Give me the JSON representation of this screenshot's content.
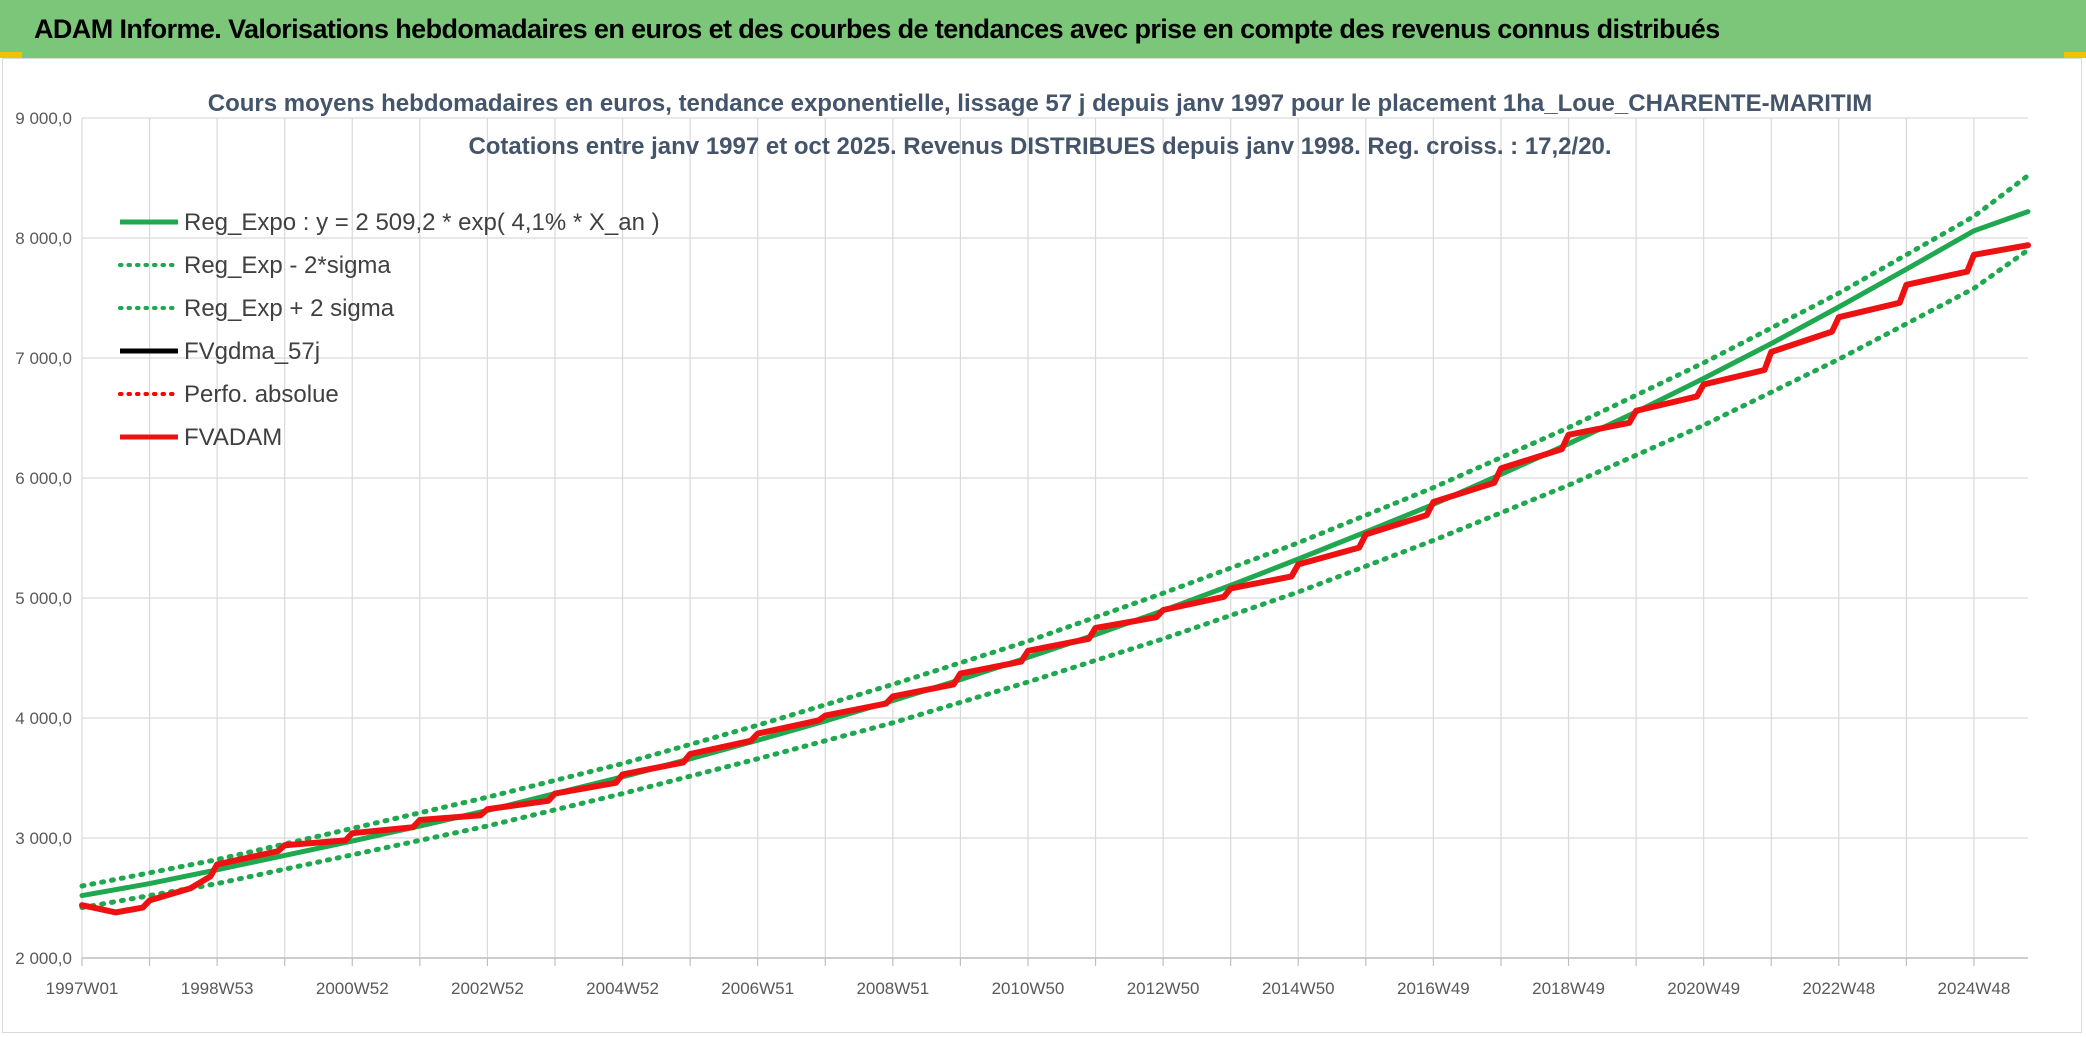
{
  "header": {
    "title": "ADAM Informe. Valorisations hebdomadaires en euros et des courbes de tendances avec prise en compte des revenus connus distribués",
    "background": "#7cc67a"
  },
  "chart_data": {
    "type": "line",
    "title_line1": "Cours moyens hebdomadaires en euros, tendance exponentielle, lissage 57 j depuis janv 1997 pour le placement 1ha_Loue_CHARENTE-MARITIM",
    "title_line2": "Cotations entre janv 1997 et oct 2025. Revenus DISTRIBUES depuis janv 1998. Reg. croiss. : 17,2/20.",
    "xlabel": "",
    "ylabel": "",
    "ylim": [
      2000,
      9000
    ],
    "y_ticks": [
      "2 000,0",
      "3 000,0",
      "4 000,0",
      "5 000,0",
      "6 000,0",
      "7 000,0",
      "8 000,0",
      "9 000,0"
    ],
    "y_tick_values": [
      2000,
      3000,
      4000,
      5000,
      6000,
      7000,
      8000,
      9000
    ],
    "xlim": [
      1997.0,
      2025.8
    ],
    "x_ticks": [
      "1997W01",
      "1998W53",
      "2000W52",
      "2002W52",
      "2004W52",
      "2006W51",
      "2008W51",
      "2010W50",
      "2012W50",
      "2014W50",
      "2016W49",
      "2018W49",
      "2020W49",
      "2022W48",
      "2024W48"
    ],
    "x_tick_values": [
      1997,
      1999,
      2001,
      2003,
      2005,
      2007,
      2009,
      2011,
      2013,
      2015,
      2017,
      2019,
      2021,
      2023,
      2025
    ],
    "grid": true,
    "legend_position": "top-left",
    "series": [
      {
        "name": "Reg_Expo : y = 2 509,2 * exp( 4,1% *  X_an )",
        "color": "#1fa84f",
        "style": "solid",
        "x": [
          1997,
          1998,
          1999,
          2000,
          2001,
          2002,
          2003,
          2004,
          2005,
          2006,
          2007,
          2008,
          2009,
          2010,
          2011,
          2012,
          2013,
          2014,
          2015,
          2016,
          2017,
          2018,
          2019,
          2020,
          2021,
          2022,
          2023,
          2024,
          2025,
          2025.8
        ],
        "values": [
          2520,
          2620,
          2735,
          2855,
          2975,
          3100,
          3230,
          3370,
          3510,
          3660,
          3815,
          3975,
          4145,
          4320,
          4505,
          4695,
          4895,
          5105,
          5325,
          5550,
          5780,
          6030,
          6285,
          6550,
          6830,
          7120,
          7425,
          7740,
          8060,
          8220
        ]
      },
      {
        "name": "Reg_Exp - 2*sigma",
        "color": "#1fa84f",
        "style": "dotted",
        "x": [
          1997,
          1999,
          2001,
          2003,
          2005,
          2007,
          2009,
          2011,
          2013,
          2015,
          2017,
          2019,
          2021,
          2023,
          2025,
          2025.8
        ],
        "values": [
          2420,
          2620,
          2860,
          3100,
          3370,
          3660,
          3960,
          4300,
          4660,
          5050,
          5480,
          5940,
          6440,
          6990,
          7580,
          7900
        ]
      },
      {
        "name": "Reg_Exp + 2 sigma",
        "color": "#1fa84f",
        "style": "dotted",
        "x": [
          1997,
          1999,
          2001,
          2003,
          2005,
          2007,
          2009,
          2011,
          2013,
          2015,
          2017,
          2019,
          2021,
          2023,
          2025,
          2025.8
        ],
        "values": [
          2600,
          2820,
          3080,
          3340,
          3620,
          3940,
          4280,
          4640,
          5040,
          5460,
          5920,
          6420,
          6960,
          7540,
          8180,
          8520
        ]
      },
      {
        "name": "FVgdma_57j",
        "color": "#000000",
        "style": "solid",
        "x": [
          1997.0,
          1997.5,
          1997.9,
          1998.0,
          1998.6,
          1998.9,
          1999.0,
          1999.9,
          2000.0,
          2000.9,
          2001.0,
          2001.9,
          2002.0,
          2002.9,
          2003.0,
          2003.9,
          2004.0,
          2004.9,
          2005.0,
          2005.9,
          2006.0,
          2006.9,
          2007.0,
          2007.9,
          2008.0,
          2008.9,
          2009.0,
          2009.9,
          2010.0,
          2010.9,
          2011.0,
          2011.9,
          2012.0,
          2012.9,
          2013.0,
          2013.9,
          2014.0,
          2014.9,
          2015.0,
          2015.9,
          2016.0,
          2016.9,
          2017.0,
          2017.9,
          2018.0,
          2018.9,
          2019.0,
          2019.9,
          2020.0,
          2020.9,
          2021.0,
          2021.9,
          2022.0,
          2022.9,
          2023.0,
          2023.9,
          2024.0,
          2024.9,
          2025.0,
          2025.8
        ],
        "values": [
          2440,
          2380,
          2420,
          2480,
          2580,
          2680,
          2780,
          2890,
          2940,
          2980,
          3040,
          3090,
          3150,
          3190,
          3240,
          3310,
          3370,
          3460,
          3530,
          3630,
          3700,
          3810,
          3870,
          3980,
          4020,
          4120,
          4180,
          4280,
          4370,
          4470,
          4560,
          4660,
          4750,
          4840,
          4900,
          5010,
          5080,
          5180,
          5280,
          5420,
          5530,
          5690,
          5800,
          5960,
          6080,
          6240,
          6360,
          6460,
          6560,
          6680,
          6780,
          6900,
          7050,
          7220,
          7340,
          7460,
          7610,
          7720,
          7860,
          7940
        ]
      },
      {
        "name": "Perfo. absolue",
        "color": "#ff0000",
        "style": "dotted",
        "x": [],
        "values": []
      },
      {
        "name": "FVADAM",
        "color": "#ee1111",
        "style": "solid",
        "x": [
          1997.0,
          1997.5,
          1997.9,
          1998.0,
          1998.6,
          1998.9,
          1999.0,
          1999.9,
          2000.0,
          2000.9,
          2001.0,
          2001.9,
          2002.0,
          2002.9,
          2003.0,
          2003.9,
          2004.0,
          2004.9,
          2005.0,
          2005.9,
          2006.0,
          2006.9,
          2007.0,
          2007.9,
          2008.0,
          2008.9,
          2009.0,
          2009.9,
          2010.0,
          2010.9,
          2011.0,
          2011.9,
          2012.0,
          2012.9,
          2013.0,
          2013.9,
          2014.0,
          2014.9,
          2015.0,
          2015.9,
          2016.0,
          2016.9,
          2017.0,
          2017.9,
          2018.0,
          2018.9,
          2019.0,
          2019.9,
          2020.0,
          2020.9,
          2021.0,
          2021.9,
          2022.0,
          2022.9,
          2023.0,
          2023.9,
          2024.0,
          2024.9,
          2025.0,
          2025.8
        ],
        "values": [
          2440,
          2380,
          2420,
          2480,
          2580,
          2680,
          2780,
          2890,
          2940,
          2980,
          3040,
          3090,
          3150,
          3190,
          3240,
          3310,
          3370,
          3460,
          3530,
          3630,
          3700,
          3810,
          3870,
          3980,
          4020,
          4120,
          4180,
          4280,
          4370,
          4470,
          4560,
          4660,
          4750,
          4840,
          4900,
          5010,
          5080,
          5180,
          5280,
          5420,
          5530,
          5690,
          5800,
          5960,
          6080,
          6240,
          6360,
          6460,
          6560,
          6680,
          6780,
          6900,
          7050,
          7220,
          7340,
          7460,
          7610,
          7720,
          7860,
          7940
        ]
      }
    ]
  }
}
